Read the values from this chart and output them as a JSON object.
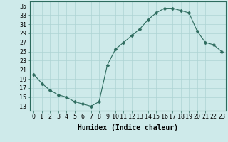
{
  "x": [
    0,
    1,
    2,
    3,
    4,
    5,
    6,
    7,
    8,
    9,
    10,
    11,
    12,
    13,
    14,
    15,
    16,
    17,
    18,
    19,
    20,
    21,
    22,
    23
  ],
  "y": [
    20,
    18,
    16.5,
    15.5,
    15,
    14,
    13.5,
    13,
    14,
    22,
    25.5,
    27,
    28.5,
    30,
    32,
    33.5,
    34.5,
    34.5,
    34,
    33.5,
    29.5,
    27,
    26.5,
    25
  ],
  "line_color": "#2d6b5e",
  "marker": "D",
  "marker_size": 2.5,
  "bg_color": "#ceeaea",
  "grid_color": "#aed4d4",
  "xlabel": "Humidex (Indice chaleur)",
  "ylabel": "",
  "xlim": [
    -0.5,
    23.5
  ],
  "ylim": [
    12,
    36
  ],
  "yticks": [
    13,
    15,
    17,
    19,
    21,
    23,
    25,
    27,
    29,
    31,
    33,
    35
  ],
  "xticks": [
    0,
    1,
    2,
    3,
    4,
    5,
    6,
    7,
    8,
    9,
    10,
    11,
    12,
    13,
    14,
    15,
    16,
    17,
    18,
    19,
    20,
    21,
    22,
    23
  ],
  "xlabel_fontsize": 7,
  "tick_fontsize": 6,
  "title": ""
}
